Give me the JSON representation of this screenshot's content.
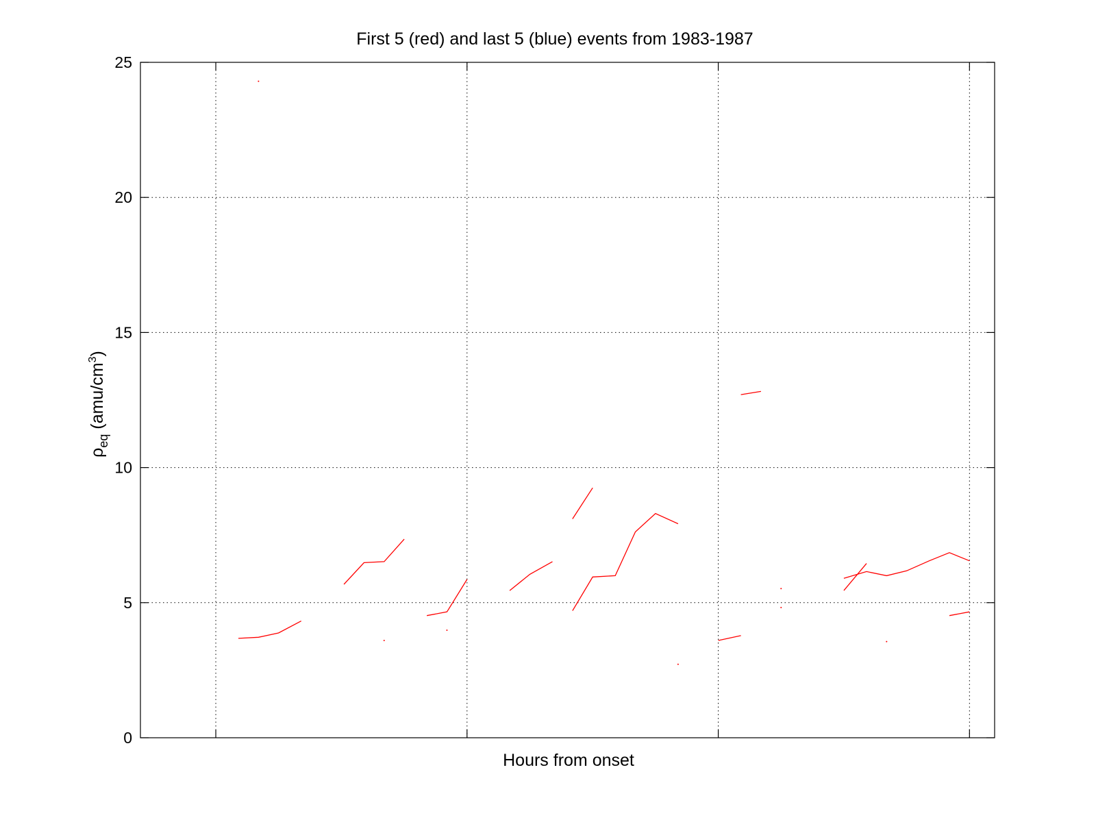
{
  "chart_data": {
    "type": "line",
    "title": "First 5 (red) and last 5 (blue) events from 1983-1987",
    "xlabel": "Hours from onset",
    "ylabel_main": "ρ",
    "ylabel_sub": "eq",
    "ylabel_rest": " (amu/cm",
    "ylabel_sup": "3",
    "ylabel_end": ")",
    "xlim": [
      -0.3,
      3.1
    ],
    "ylim": [
      0,
      25
    ],
    "yticks": [
      0,
      5,
      10,
      15,
      20,
      25
    ],
    "ytick_labels": [
      "0",
      "5",
      "10",
      "15",
      "20",
      "25"
    ],
    "xgrid": [
      0,
      1,
      2,
      3
    ],
    "grid": true,
    "series": [
      {
        "color": "#ff0000",
        "x": [
          0.09,
          0.17,
          0.25,
          0.34
        ],
        "y": [
          3.68,
          3.72,
          3.88,
          4.32
        ]
      },
      {
        "color": "#ff0000",
        "x": [
          0.51,
          0.59,
          0.67,
          0.75
        ],
        "y": [
          5.68,
          6.48,
          6.52,
          7.35
        ]
      },
      {
        "color": "#ff0000",
        "x": [
          0.84,
          0.92,
          1.0
        ],
        "y": [
          4.52,
          4.66,
          5.86
        ]
      },
      {
        "color": "#ff0000",
        "x": [
          1.17,
          1.25,
          1.34
        ],
        "y": [
          5.45,
          6.05,
          6.52
        ]
      },
      {
        "color": "#ff0000",
        "x": [
          1.42,
          1.5
        ],
        "y": [
          8.1,
          9.25
        ]
      },
      {
        "color": "#ff0000",
        "x": [
          1.42,
          1.5,
          1.59,
          1.67,
          1.75,
          1.84
        ],
        "y": [
          4.7,
          5.95,
          6.0,
          7.62,
          8.3,
          7.92
        ]
      },
      {
        "color": "#ff0000",
        "x": [
          2.09,
          2.17
        ],
        "y": [
          12.7,
          12.82
        ]
      },
      {
        "color": "#ff0000",
        "x": [
          2.0,
          2.09
        ],
        "y": [
          3.6,
          3.78
        ]
      },
      {
        "color": "#ff0000",
        "x": [
          2.5,
          2.59,
          2.67,
          2.75,
          2.84,
          2.92,
          3.0
        ],
        "y": [
          5.9,
          6.15,
          6.0,
          6.18,
          6.55,
          6.85,
          6.55
        ]
      },
      {
        "color": "#ff0000",
        "x": [
          2.5,
          2.59
        ],
        "y": [
          5.45,
          6.45
        ]
      },
      {
        "color": "#ff0000",
        "x": [
          2.92,
          3.0
        ],
        "y": [
          4.52,
          4.66
        ]
      }
    ],
    "points": [
      {
        "color": "#ff0000",
        "x": 0.17,
        "y": 24.3
      },
      {
        "color": "#ff0000",
        "x": 0.67,
        "y": 3.6
      },
      {
        "color": "#ff0000",
        "x": 0.92,
        "y": 3.98
      },
      {
        "color": "#ff0000",
        "x": 1.84,
        "y": 2.72
      },
      {
        "color": "#ff0000",
        "x": 2.25,
        "y": 5.52
      },
      {
        "color": "#ff0000",
        "x": 2.25,
        "y": 4.82
      },
      {
        "color": "#ff0000",
        "x": 2.67,
        "y": 3.56
      }
    ]
  }
}
